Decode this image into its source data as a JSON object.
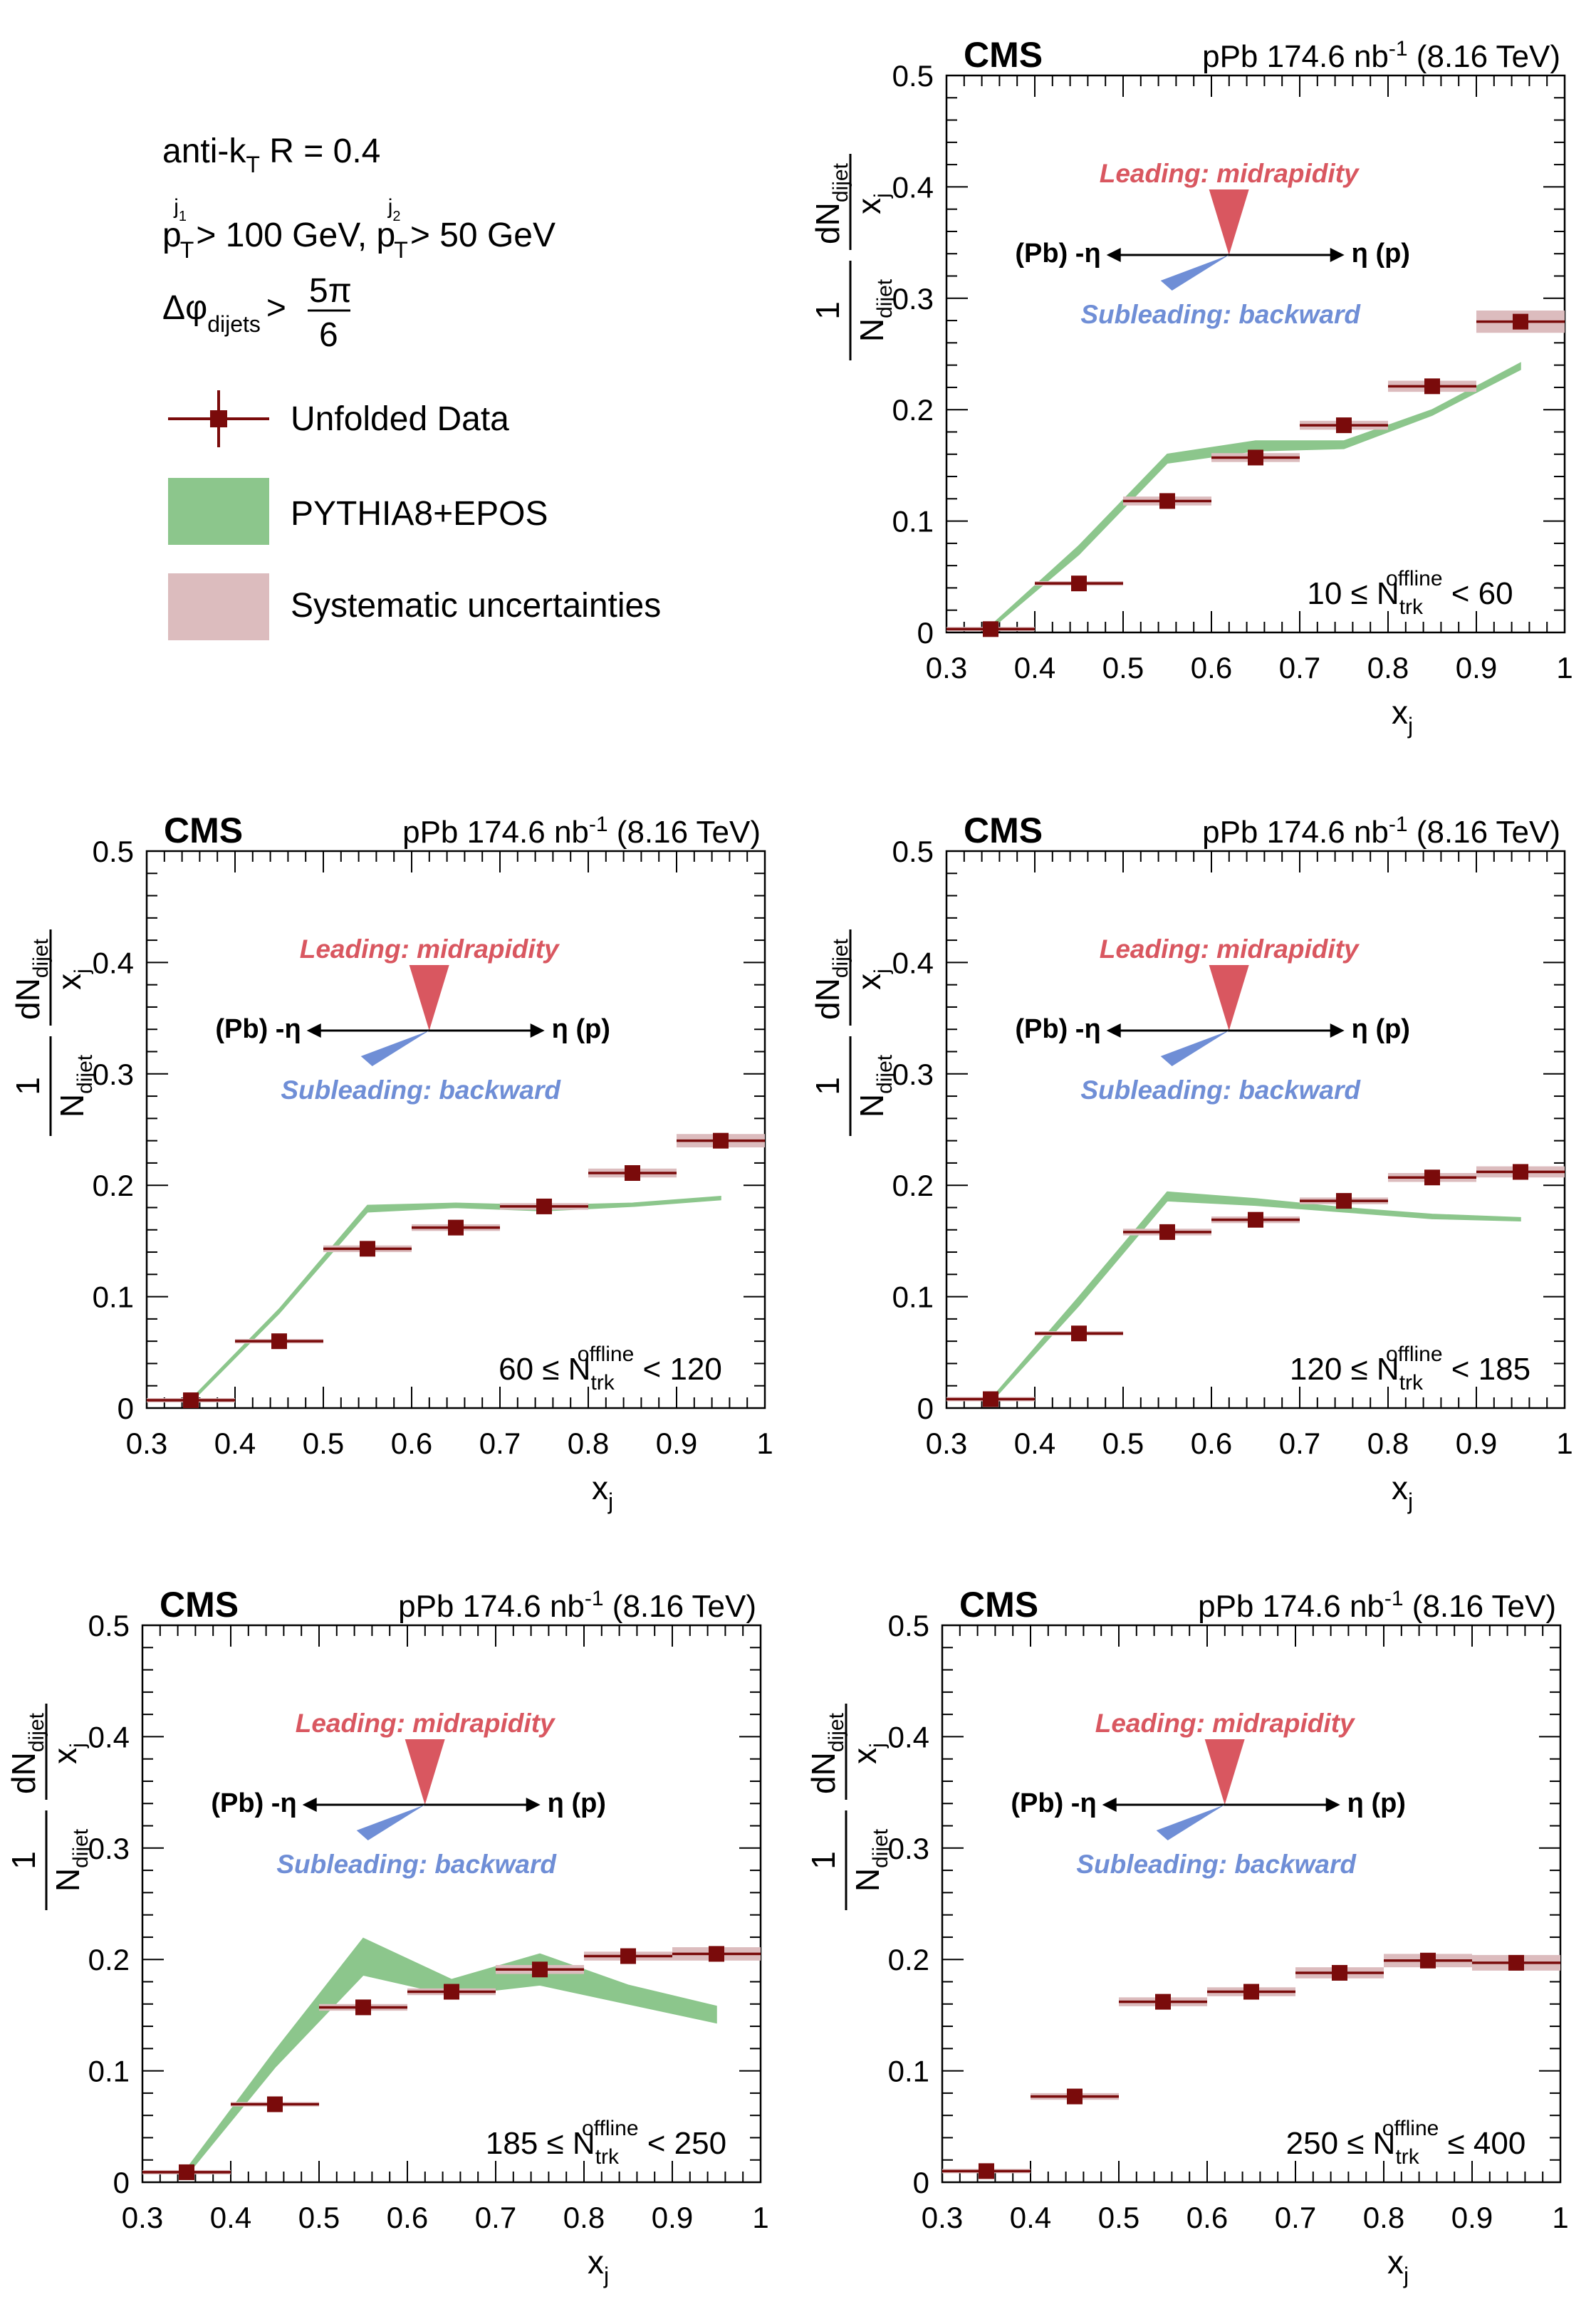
{
  "legend": {
    "algo": "anti-k",
    "algo_sub": "T",
    "algo_rest": " R = 0.4",
    "cut_pt_main": "p",
    "cut_pt_sub": "T",
    "cut_pt_sup1": "j",
    "cut_pt_sup1b": "1",
    "cut_pt_val1": " > 100 GeV, ",
    "cut_pt_sup2": "j",
    "cut_pt_sup2b": "2",
    "cut_pt_val2": " > 50 GeV",
    "dphi_main": "Δφ",
    "dphi_sub": "dijets",
    "dphi_gt": ">",
    "dphi_num": "5π",
    "dphi_den": "6",
    "entries": [
      {
        "label": "Unfolded Data",
        "kind": "marker",
        "color": "#7a0b0b"
      },
      {
        "label": "PYTHIA8+EPOS",
        "kind": "band",
        "color": "#8cc68c"
      },
      {
        "label": "Systematic uncertainties",
        "kind": "band",
        "color": "#dcbcbe"
      }
    ]
  },
  "common": {
    "cms_label": "CMS",
    "lumi_text": "pPb 174.6 nb",
    "lumi_sup": "-1",
    "lumi_energy": " (8.16 TeV)",
    "leading_text": "Leading: midrapidity",
    "subleading_text": "Subleading: backward",
    "eta_left": "(Pb) -η",
    "eta_right": "η (p)",
    "xlabel_main": "x",
    "xlabel_sub": "j",
    "ylabel_one": "1",
    "ylabel_N": "N",
    "ylabel_dN": "dN",
    "ylabel_dijet": "dijet",
    "ylabel_xj": "x",
    "ylabel_j": "j",
    "colors": {
      "data": "#7a0b0b",
      "sys": "#dcbcbe",
      "mc": "#8cc68c",
      "leading": "#d95760",
      "subleading": "#6f8ed6"
    }
  },
  "chart_data": [
    {
      "type": "line",
      "bin_label": "10 ≤ N",
      "bin_sub": "trk",
      "bin_sup": "offline",
      "bin_tail": " < 60",
      "xlim": [
        0.3,
        1
      ],
      "ylim": [
        0,
        0.5
      ],
      "x_ticks": [
        "0.3",
        "0.4",
        "0.5",
        "0.6",
        "0.7",
        "0.8",
        "0.9",
        "1"
      ],
      "y_ticks": [
        "0",
        "0.1",
        "0.2",
        "0.3",
        "0.4",
        "0.5"
      ],
      "series": [
        {
          "name": "Unfolded Data",
          "x": [
            0.35,
            0.45,
            0.55,
            0.65,
            0.75,
            0.85,
            0.95
          ],
          "y": [
            0.003,
            0.044,
            0.118,
            0.157,
            0.186,
            0.221,
            0.279
          ],
          "sys": [
            0.001,
            0.002,
            0.004,
            0.004,
            0.004,
            0.005,
            0.01
          ]
        },
        {
          "name": "PYTHIA8+EPOS",
          "x": [
            0.35,
            0.45,
            0.55,
            0.65,
            0.75,
            0.85,
            0.95
          ],
          "y_low": [
            0.003,
            0.07,
            0.152,
            0.163,
            0.165,
            0.195,
            0.236
          ],
          "y_high": [
            0.006,
            0.078,
            0.16,
            0.172,
            0.172,
            0.2,
            0.242
          ]
        }
      ]
    },
    {
      "type": "line",
      "bin_label": "60 ≤ N",
      "bin_sub": "trk",
      "bin_sup": "offline",
      "bin_tail": " < 120",
      "xlim": [
        0.3,
        1
      ],
      "ylim": [
        0,
        0.5
      ],
      "x_ticks": [
        "0.3",
        "0.4",
        "0.5",
        "0.6",
        "0.7",
        "0.8",
        "0.9",
        "1"
      ],
      "y_ticks": [
        "0",
        "0.1",
        "0.2",
        "0.3",
        "0.4",
        "0.5"
      ],
      "series": [
        {
          "name": "Unfolded Data",
          "x": [
            0.35,
            0.45,
            0.55,
            0.65,
            0.75,
            0.85,
            0.95
          ],
          "y": [
            0.007,
            0.06,
            0.143,
            0.162,
            0.181,
            0.211,
            0.24
          ],
          "sys": [
            0.001,
            0.002,
            0.003,
            0.003,
            0.003,
            0.004,
            0.006
          ]
        },
        {
          "name": "PYTHIA8+EPOS",
          "x": [
            0.35,
            0.45,
            0.55,
            0.65,
            0.75,
            0.85,
            0.95
          ],
          "y_low": [
            0.005,
            0.085,
            0.176,
            0.18,
            0.177,
            0.181,
            0.187
          ],
          "y_high": [
            0.008,
            0.089,
            0.182,
            0.184,
            0.182,
            0.184,
            0.19
          ]
        }
      ]
    },
    {
      "type": "line",
      "bin_label": "120 ≤ N",
      "bin_sub": "trk",
      "bin_sup": "offline",
      "bin_tail": " < 185",
      "xlim": [
        0.3,
        1
      ],
      "ylim": [
        0,
        0.5
      ],
      "x_ticks": [
        "0.3",
        "0.4",
        "0.5",
        "0.6",
        "0.7",
        "0.8",
        "0.9",
        "1"
      ],
      "y_ticks": [
        "0",
        "0.1",
        "0.2",
        "0.3",
        "0.4",
        "0.5"
      ],
      "series": [
        {
          "name": "Unfolded Data",
          "x": [
            0.35,
            0.45,
            0.55,
            0.65,
            0.75,
            0.85,
            0.95
          ],
          "y": [
            0.008,
            0.067,
            0.158,
            0.169,
            0.186,
            0.207,
            0.212
          ],
          "sys": [
            0.001,
            0.002,
            0.003,
            0.003,
            0.003,
            0.004,
            0.005
          ]
        },
        {
          "name": "PYTHIA8+EPOS",
          "x": [
            0.35,
            0.45,
            0.55,
            0.65,
            0.75,
            0.85,
            0.95
          ],
          "y_low": [
            0.005,
            0.092,
            0.186,
            0.182,
            0.176,
            0.17,
            0.168
          ],
          "y_high": [
            0.008,
            0.1,
            0.194,
            0.188,
            0.18,
            0.174,
            0.171
          ]
        }
      ]
    },
    {
      "type": "line",
      "bin_label": "185 ≤ N",
      "bin_sub": "trk",
      "bin_sup": "offline",
      "bin_tail": " < 250",
      "xlim": [
        0.3,
        1
      ],
      "ylim": [
        0,
        0.5
      ],
      "x_ticks": [
        "0.3",
        "0.4",
        "0.5",
        "0.6",
        "0.7",
        "0.8",
        "0.9",
        "1"
      ],
      "y_ticks": [
        "0",
        "0.1",
        "0.2",
        "0.3",
        "0.4",
        "0.5"
      ],
      "series": [
        {
          "name": "Unfolded Data",
          "x": [
            0.35,
            0.45,
            0.55,
            0.65,
            0.75,
            0.85,
            0.95
          ],
          "y": [
            0.009,
            0.07,
            0.157,
            0.171,
            0.191,
            0.203,
            0.205
          ],
          "sys": [
            0.001,
            0.002,
            0.003,
            0.003,
            0.004,
            0.004,
            0.006
          ]
        },
        {
          "name": "PYTHIA8+EPOS",
          "x": [
            0.35,
            0.45,
            0.55,
            0.65,
            0.75,
            0.85,
            0.95
          ],
          "y_low": [
            0.006,
            0.103,
            0.186,
            0.168,
            0.177,
            0.16,
            0.143
          ],
          "y_high": [
            0.012,
            0.118,
            0.219,
            0.182,
            0.205,
            0.177,
            0.158
          ]
        }
      ]
    },
    {
      "type": "line",
      "bin_label": "250 ≤ N",
      "bin_sub": "trk",
      "bin_sup": "offline",
      "bin_tail": " ≤ 400",
      "xlim": [
        0.3,
        1
      ],
      "ylim": [
        0,
        0.5
      ],
      "x_ticks": [
        "0.3",
        "0.4",
        "0.5",
        "0.6",
        "0.7",
        "0.8",
        "0.9",
        "1"
      ],
      "y_ticks": [
        "0",
        "0.1",
        "0.2",
        "0.3",
        "0.4",
        "0.5"
      ],
      "series": [
        {
          "name": "Unfolded Data",
          "x": [
            0.35,
            0.45,
            0.55,
            0.65,
            0.75,
            0.85,
            0.95
          ],
          "y": [
            0.01,
            0.077,
            0.162,
            0.171,
            0.188,
            0.199,
            0.197
          ],
          "sys": [
            0.001,
            0.003,
            0.004,
            0.004,
            0.005,
            0.006,
            0.007
          ]
        }
      ]
    }
  ]
}
